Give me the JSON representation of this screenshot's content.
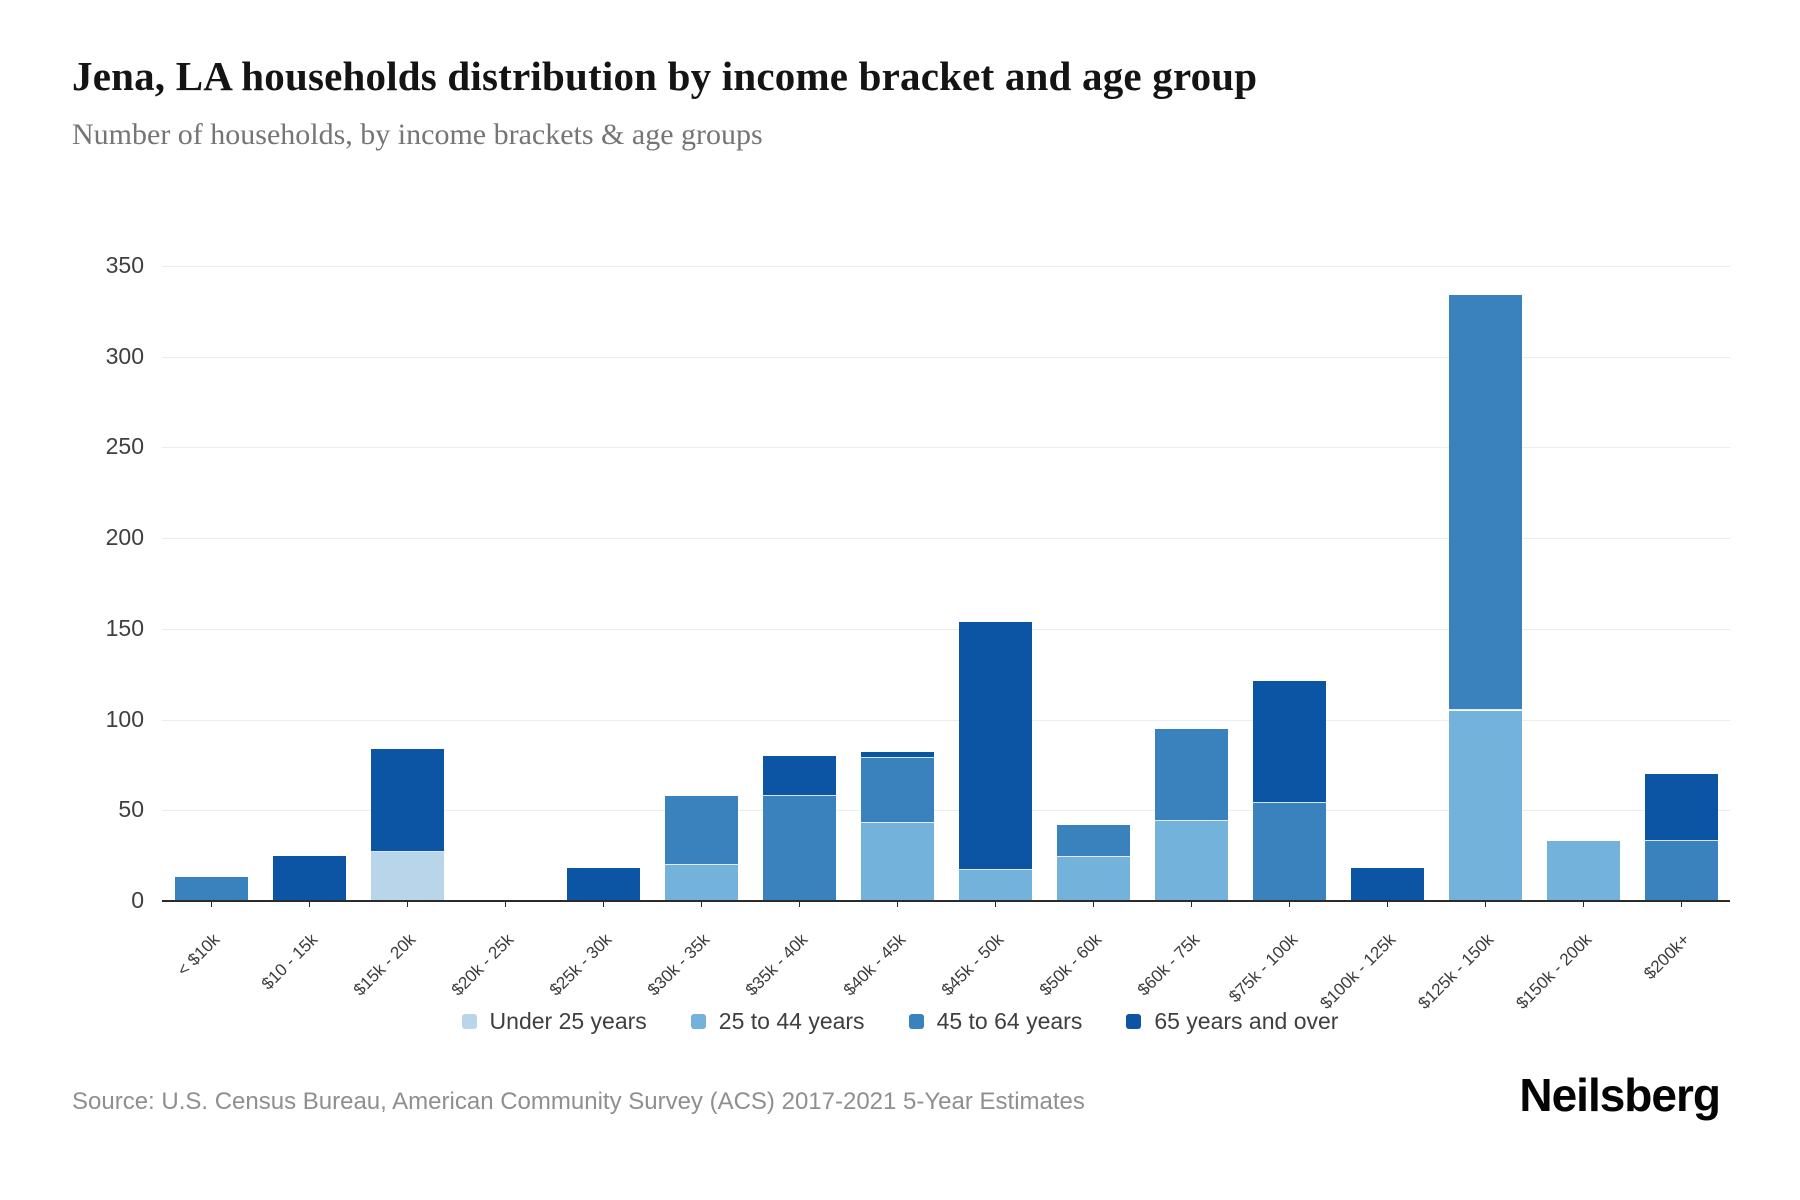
{
  "header": {
    "title": "Jena, LA households distribution by income bracket and age group",
    "subtitle": "Number of households, by income brackets & age groups"
  },
  "chart_data": {
    "type": "bar",
    "stacked": true,
    "title": "Jena, LA households distribution by income bracket and age group",
    "xlabel": "",
    "ylabel": "",
    "ylim": [
      0,
      350
    ],
    "yticks": [
      0,
      50,
      100,
      150,
      200,
      250,
      300,
      350
    ],
    "grid": true,
    "legend_position": "bottom",
    "categories": [
      "< $10k",
      "$10 - 15k",
      "$15k - 20k",
      "$20k - 25k",
      "$25k - 30k",
      "$30k - 35k",
      "$35k - 40k",
      "$40k - 45k",
      "$45k - 50k",
      "$50k - 60k",
      "$60k - 75k",
      "$75k - 100k",
      "$100k - 125k",
      "$125k - 150k",
      "$150k - 200k",
      "$200k+"
    ],
    "series": [
      {
        "name": "Under 25 years",
        "color": "#b9d5e9",
        "values": [
          0,
          0,
          27,
          0,
          0,
          0,
          0,
          0,
          0,
          0,
          0,
          0,
          0,
          0,
          0,
          0
        ]
      },
      {
        "name": "25 to 44 years",
        "color": "#72b2db",
        "values": [
          0,
          0,
          0,
          0,
          0,
          20,
          0,
          43,
          17,
          24,
          44,
          0,
          0,
          105,
          33,
          0
        ]
      },
      {
        "name": "45 to 64 years",
        "color": "#3a82bd",
        "values": [
          13,
          0,
          0,
          0,
          0,
          38,
          58,
          36,
          0,
          18,
          51,
          54,
          0,
          229,
          0,
          33
        ]
      },
      {
        "name": "65 years and over",
        "color": "#0c55a5",
        "values": [
          0,
          25,
          57,
          0,
          18,
          0,
          22,
          3,
          137,
          0,
          0,
          67,
          18,
          0,
          0,
          37
        ]
      }
    ]
  },
  "footer": {
    "source": "Source: U.S. Census Bureau, American Community Survey (ACS) 2017-2021 5-Year Estimates",
    "logo": "Neilsberg"
  }
}
